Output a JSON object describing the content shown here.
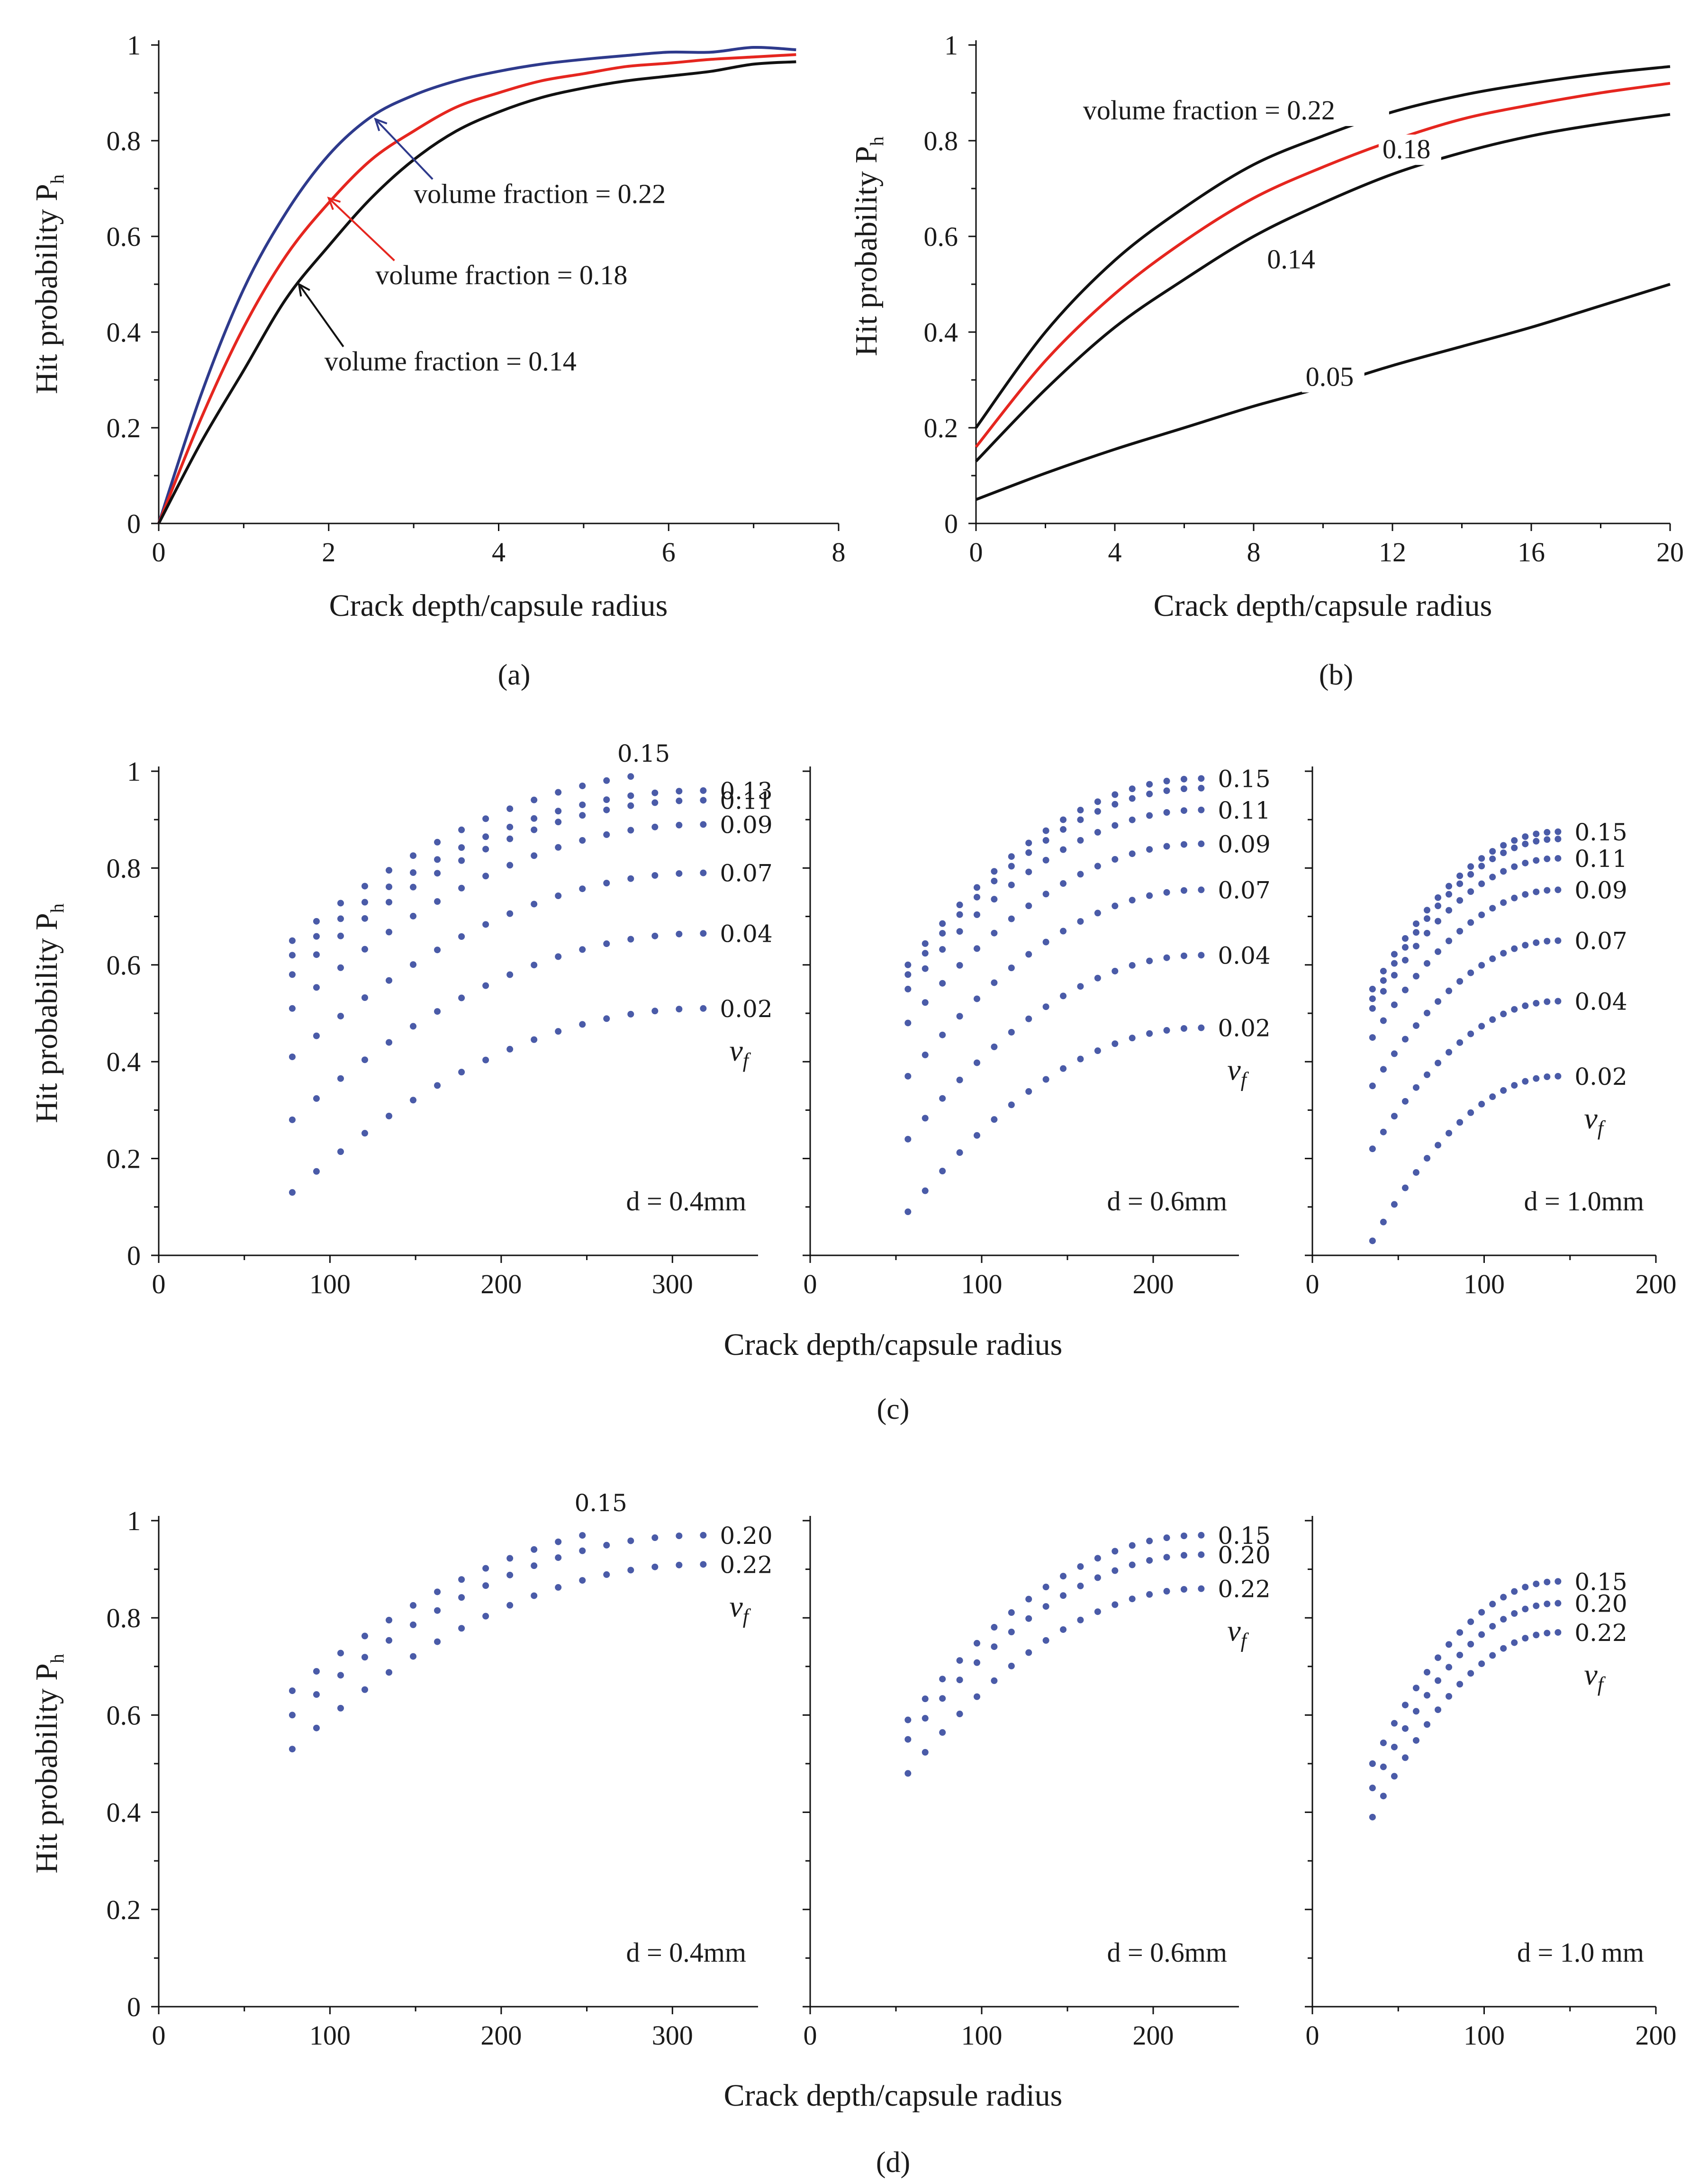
{
  "figure_labels": {
    "a": "(a)",
    "b": "(b)",
    "c": "(c)",
    "d": "(d)"
  },
  "colors": {
    "black": "#111111",
    "red": "#e5261f",
    "navy": "#2e3a8c",
    "dots": "#4a5ba8"
  },
  "chart_data": [
    {
      "id": "a",
      "type": "line",
      "xlabel": "Crack depth/capsule radius",
      "ylabel": "Hit probability P",
      "ylabel_sub": "h",
      "xlim": [
        0,
        8
      ],
      "ylim": [
        0,
        1
      ],
      "xticks": [
        0,
        2,
        4,
        6,
        8
      ],
      "yticks": [
        0,
        0.2,
        0.4,
        0.6,
        0.8,
        1
      ],
      "series": [
        {
          "name": "volume fraction = 0.22",
          "color": "#2e3a8c",
          "x": [
            0,
            0.5,
            1,
            1.5,
            2,
            2.5,
            3,
            3.5,
            4,
            4.5,
            5,
            5.5,
            6,
            6.5,
            7,
            7.5
          ],
          "y": [
            0,
            0.27,
            0.49,
            0.65,
            0.77,
            0.85,
            0.895,
            0.925,
            0.945,
            0.96,
            0.97,
            0.978,
            0.985,
            0.985,
            0.995,
            0.99
          ]
        },
        {
          "name": "volume fraction = 0.18",
          "color": "#e5261f",
          "x": [
            0,
            0.5,
            1,
            1.5,
            2,
            2.5,
            3,
            3.5,
            4,
            4.5,
            5,
            5.5,
            6,
            6.5,
            7,
            7.5
          ],
          "y": [
            0,
            0.22,
            0.41,
            0.56,
            0.67,
            0.76,
            0.82,
            0.87,
            0.9,
            0.925,
            0.94,
            0.955,
            0.962,
            0.97,
            0.975,
            0.98
          ]
        },
        {
          "name": "volume fraction = 0.14",
          "color": "#111111",
          "x": [
            0,
            0.5,
            1,
            1.5,
            2,
            2.5,
            3,
            3.5,
            4,
            4.5,
            5,
            5.5,
            6,
            6.5,
            7,
            7.5
          ],
          "y": [
            0,
            0.17,
            0.32,
            0.47,
            0.58,
            0.68,
            0.76,
            0.82,
            0.86,
            0.89,
            0.91,
            0.925,
            0.935,
            0.945,
            0.96,
            0.965
          ]
        }
      ],
      "annotations": [
        {
          "text": "volume fraction = 0.22",
          "color": "#2e3a8c",
          "x": 3,
          "y": 0.67,
          "arrow_to": [
            2.55,
            0.845
          ]
        },
        {
          "text": "volume fraction = 0.18",
          "color": "#e5261f",
          "x": 2.55,
          "y": 0.5,
          "arrow_to": [
            2.0,
            0.68
          ]
        },
        {
          "text": "volume fraction = 0.14",
          "color": "#111111",
          "x": 1.95,
          "y": 0.32,
          "arrow_to": [
            1.65,
            0.5
          ]
        }
      ]
    },
    {
      "id": "b",
      "type": "line",
      "xlabel": "Crack depth/capsule radius",
      "ylabel": "Hit probability P",
      "ylabel_sub": "h",
      "xlim": [
        0,
        20
      ],
      "ylim": [
        0,
        1
      ],
      "xticks": [
        0,
        4,
        8,
        12,
        16,
        20
      ],
      "yticks": [
        0,
        0.2,
        0.4,
        0.6,
        0.8,
        1
      ],
      "series": [
        {
          "name": "volume fraction = 0.22",
          "label": "volume fraction = 0.22",
          "color": "#111111",
          "x": [
            0,
            2,
            4,
            6,
            8,
            10,
            12,
            14,
            16,
            18,
            20
          ],
          "y": [
            0.2,
            0.4,
            0.55,
            0.66,
            0.75,
            0.81,
            0.86,
            0.895,
            0.92,
            0.94,
            0.955
          ]
        },
        {
          "name": "0.18",
          "label": "0.18",
          "color": "#e5261f",
          "x": [
            0,
            2,
            4,
            6,
            8,
            10,
            12,
            14,
            16,
            18,
            20
          ],
          "y": [
            0.16,
            0.34,
            0.48,
            0.59,
            0.68,
            0.745,
            0.8,
            0.845,
            0.875,
            0.9,
            0.92
          ]
        },
        {
          "name": "0.14",
          "label": "0.14",
          "color": "#111111",
          "x": [
            0,
            2,
            4,
            6,
            8,
            10,
            12,
            14,
            16,
            18,
            20
          ],
          "y": [
            0.13,
            0.28,
            0.41,
            0.51,
            0.6,
            0.67,
            0.73,
            0.775,
            0.81,
            0.835,
            0.855
          ]
        },
        {
          "name": "0.05",
          "label": "0.05",
          "color": "#111111",
          "x": [
            0,
            2,
            4,
            6,
            8,
            10,
            12,
            14,
            16,
            18,
            20
          ],
          "y": [
            0.05,
            0.105,
            0.155,
            0.2,
            0.245,
            0.285,
            0.33,
            0.37,
            0.41,
            0.455,
            0.5
          ]
        }
      ]
    },
    {
      "id": "c",
      "type": "scatter",
      "xlabel": "Crack depth/capsule  radius",
      "ylabel": "Hit probability P",
      "ylabel_sub": "h",
      "ylim": [
        0,
        1
      ],
      "yticks": [
        0,
        0.2,
        0.4,
        0.6,
        0.8,
        1
      ],
      "vf_symbol": "v",
      "vf_sub": "f",
      "panels": [
        {
          "d_label": "d = 0.4mm",
          "xlim": [
            0,
            350
          ],
          "xticks": [
            0,
            100,
            200,
            300
          ],
          "x_range": [
            78,
            318
          ],
          "series": [
            {
              "vf": "0.15",
              "y0": 0.65,
              "yend": 1.0,
              "xend": 283
            },
            {
              "vf": "0.13",
              "y0": 0.62,
              "yend": 0.96
            },
            {
              "vf": "0.11",
              "y0": 0.58,
              "yend": 0.94
            },
            {
              "vf": "0.09",
              "y0": 0.51,
              "yend": 0.89
            },
            {
              "vf": "0.07",
              "y0": 0.41,
              "yend": 0.79
            },
            {
              "vf": "0.04",
              "y0": 0.28,
              "yend": 0.665
            },
            {
              "vf": "0.02",
              "y0": 0.13,
              "yend": 0.51
            }
          ]
        },
        {
          "d_label": "d = 0.6mm",
          "xlim": [
            0,
            250
          ],
          "xticks": [
            0,
            100,
            200
          ],
          "x_range": [
            57,
            228
          ],
          "series": [
            {
              "vf": "0.15",
              "y0": 0.6,
              "yend": 0.985
            },
            {
              "vf": "",
              "y0": 0.58,
              "yend": 0.965
            },
            {
              "vf": "0.11",
              "y0": 0.55,
              "yend": 0.92
            },
            {
              "vf": "0.09",
              "y0": 0.48,
              "yend": 0.85
            },
            {
              "vf": "0.07",
              "y0": 0.37,
              "yend": 0.755
            },
            {
              "vf": "0.04",
              "y0": 0.24,
              "yend": 0.62
            },
            {
              "vf": "0.02",
              "y0": 0.09,
              "yend": 0.47
            }
          ]
        },
        {
          "d_label": "d = 1.0mm",
          "xlim": [
            0,
            200
          ],
          "xticks": [
            0,
            100,
            200
          ],
          "x_range": [
            35,
            143
          ],
          "series": [
            {
              "vf": "0.15",
              "y0": 0.55,
              "yend": 0.875
            },
            {
              "vf": "",
              "y0": 0.53,
              "yend": 0.86
            },
            {
              "vf": "0.11",
              "y0": 0.51,
              "yend": 0.82
            },
            {
              "vf": "0.09",
              "y0": 0.45,
              "yend": 0.755
            },
            {
              "vf": "0.07",
              "y0": 0.35,
              "yend": 0.65
            },
            {
              "vf": "0.04",
              "y0": 0.22,
              "yend": 0.525
            },
            {
              "vf": "0.02",
              "y0": 0.03,
              "yend": 0.37
            }
          ]
        }
      ]
    },
    {
      "id": "d",
      "type": "scatter",
      "xlabel": "Crack depth/capsule radius",
      "ylabel": "Hit probability P",
      "ylabel_sub": "h",
      "ylim": [
        0,
        1
      ],
      "yticks": [
        0,
        0.2,
        0.4,
        0.6,
        0.8,
        1
      ],
      "vf_symbol": "v",
      "vf_sub": "f",
      "panels": [
        {
          "d_label": "d = 0.4mm",
          "xlim": [
            0,
            350
          ],
          "xticks": [
            0,
            100,
            200,
            300
          ],
          "x_range": [
            78,
            318
          ],
          "series": [
            {
              "vf": "0.15",
              "y0": 0.65,
              "yend": 1.0,
              "xend": 258
            },
            {
              "vf": "0.20",
              "y0": 0.6,
              "yend": 0.97
            },
            {
              "vf": "0.22",
              "y0": 0.53,
              "yend": 0.91
            }
          ]
        },
        {
          "d_label": "d = 0.6mm",
          "xlim": [
            0,
            250
          ],
          "xticks": [
            0,
            100,
            200
          ],
          "x_range": [
            57,
            228
          ],
          "series": [
            {
              "vf": "0.15",
              "y0": 0.59,
              "yend": 0.97
            },
            {
              "vf": "0.20",
              "y0": 0.55,
              "yend": 0.93
            },
            {
              "vf": "0.22",
              "y0": 0.48,
              "yend": 0.86
            }
          ]
        },
        {
          "d_label": "d = 1.0 mm",
          "xlim": [
            0,
            200
          ],
          "xticks": [
            0,
            100,
            200
          ],
          "x_range": [
            35,
            143
          ],
          "series": [
            {
              "vf": "0.15",
              "y0": 0.5,
              "yend": 0.875
            },
            {
              "vf": "0.20",
              "y0": 0.45,
              "yend": 0.83
            },
            {
              "vf": "0.22",
              "y0": 0.39,
              "yend": 0.77
            }
          ]
        }
      ]
    }
  ]
}
